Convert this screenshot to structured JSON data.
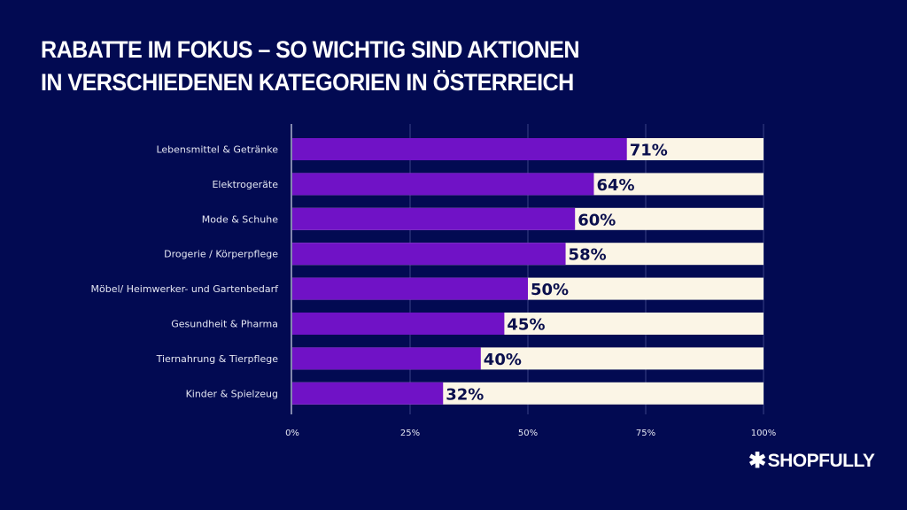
{
  "title": {
    "line1": "RABATTE IM FOKUS – SO WICHTIG SIND AKTIONEN",
    "line2": "IN VERSCHIEDENEN KATEGORIEN IN ÖSTERREICH"
  },
  "logo": {
    "icon": "asterisk-icon",
    "text": "SHOPFULLY"
  },
  "colors": {
    "background": "#020a52",
    "bar": "#7012c6",
    "remainder": "#fbf5e6",
    "label": "#0a0f4d",
    "grid": "#3a4185"
  },
  "chart_data": {
    "type": "bar",
    "orientation": "horizontal",
    "stacked_to": 100,
    "title": "RABATTE IM FOKUS – SO WICHTIG SIND AKTIONEN IN VERSCHIEDENEN KATEGORIEN IN ÖSTERREICH",
    "categories": [
      "Lebensmittel & Getränke",
      "Elektrogeräte",
      "Mode & Schuhe",
      "Drogerie / Körperpflege",
      "Möbel/ Heimwerker- und Gartenbedarf",
      "Gesundheit & Pharma",
      "Tiernahrung & Tierpflege",
      "Kinder & Spielzeug"
    ],
    "values": [
      71,
      64,
      60,
      58,
      50,
      45,
      40,
      32
    ],
    "value_labels": [
      "71%",
      "64%",
      "60%",
      "58%",
      "50%",
      "45%",
      "40%",
      "32%"
    ],
    "xlim": [
      0,
      100
    ],
    "xticks": [
      0,
      25,
      50,
      75,
      100
    ],
    "xtick_labels": [
      "0%",
      "25%",
      "50%",
      "75%",
      "100%"
    ],
    "xlabel": "",
    "ylabel": "",
    "grid": true
  }
}
